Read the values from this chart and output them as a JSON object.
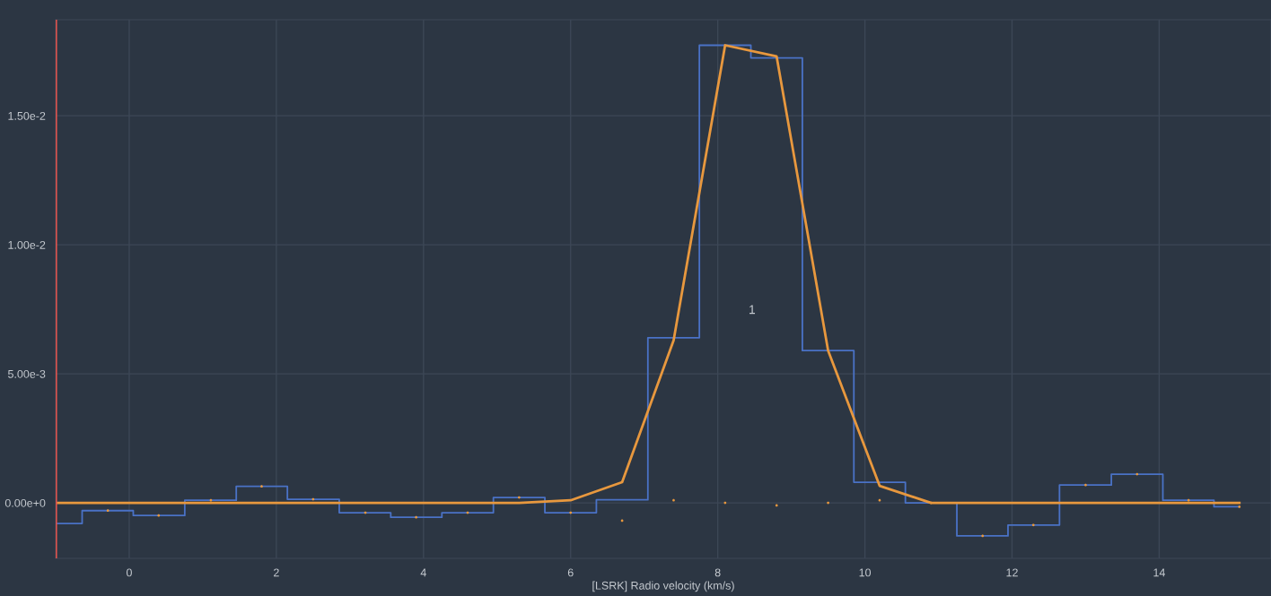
{
  "chart_data": {
    "type": "step",
    "xlabel": "[LSRK] Radio velocity (km/s)",
    "xlim": [
      -1.0,
      15.52
    ],
    "xticks": [
      0,
      2,
      4,
      6,
      8,
      10,
      12,
      14
    ],
    "ylim": [
      -0.00215,
      0.01872
    ],
    "yticks": [
      {
        "value": 0,
        "label": "0.00e+0"
      },
      {
        "value": 0.005,
        "label": "5.00e-3"
      },
      {
        "value": 0.01,
        "label": "1.00e-2"
      },
      {
        "value": 0.015,
        "label": "1.50e-2"
      }
    ],
    "grid": true,
    "legend": false,
    "x": [
      -0.99,
      -0.29,
      0.4,
      1.11,
      1.8,
      2.5,
      3.21,
      3.9,
      4.6,
      5.3,
      6.0,
      6.7,
      7.4,
      8.1,
      8.8,
      9.5,
      10.2,
      10.9,
      11.6,
      12.29,
      13.0,
      13.7,
      14.4,
      15.09
    ],
    "series": [
      {
        "color": "#4a72c6",
        "values": [
          -0.0008,
          -0.0003,
          -0.00049,
          0.0001,
          0.00064,
          0.00014,
          -0.00038,
          -0.00056,
          -0.00038,
          0.00021,
          -0.00038,
          0.00012,
          0.0064,
          0.01773,
          0.01724,
          0.0059,
          0.0008,
          0.0,
          -0.00128,
          -0.00086,
          0.00069,
          0.00111,
          0.0001,
          -0.00015
        ]
      },
      {
        "type": "line",
        "color": "#e8983e",
        "values": [
          0,
          0,
          0,
          0,
          0,
          0,
          0,
          0,
          0,
          0,
          0.0001,
          0.0008,
          0.0063,
          0.01773,
          0.0173,
          0.0059,
          0.00066,
          0,
          0,
          0,
          0,
          0,
          0,
          0
        ]
      },
      {
        "type": "scatter",
        "color": "#e8983e",
        "values": [
          null,
          -0.0003,
          -0.00049,
          0.0001,
          0.00064,
          0.00014,
          -0.00038,
          -0.00056,
          -0.00038,
          0.00021,
          -0.00038,
          -0.00069,
          0.0001,
          0.0,
          -0.0001,
          0.0,
          0.0001,
          0.0,
          -0.00128,
          -0.00086,
          0.00069,
          0.00111,
          0.0001,
          -0.00015
        ]
      }
    ],
    "ref_lines": [
      {
        "axis": "x",
        "value": -0.99,
        "color": "#d9534f"
      }
    ],
    "annotations": [
      "1"
    ]
  }
}
